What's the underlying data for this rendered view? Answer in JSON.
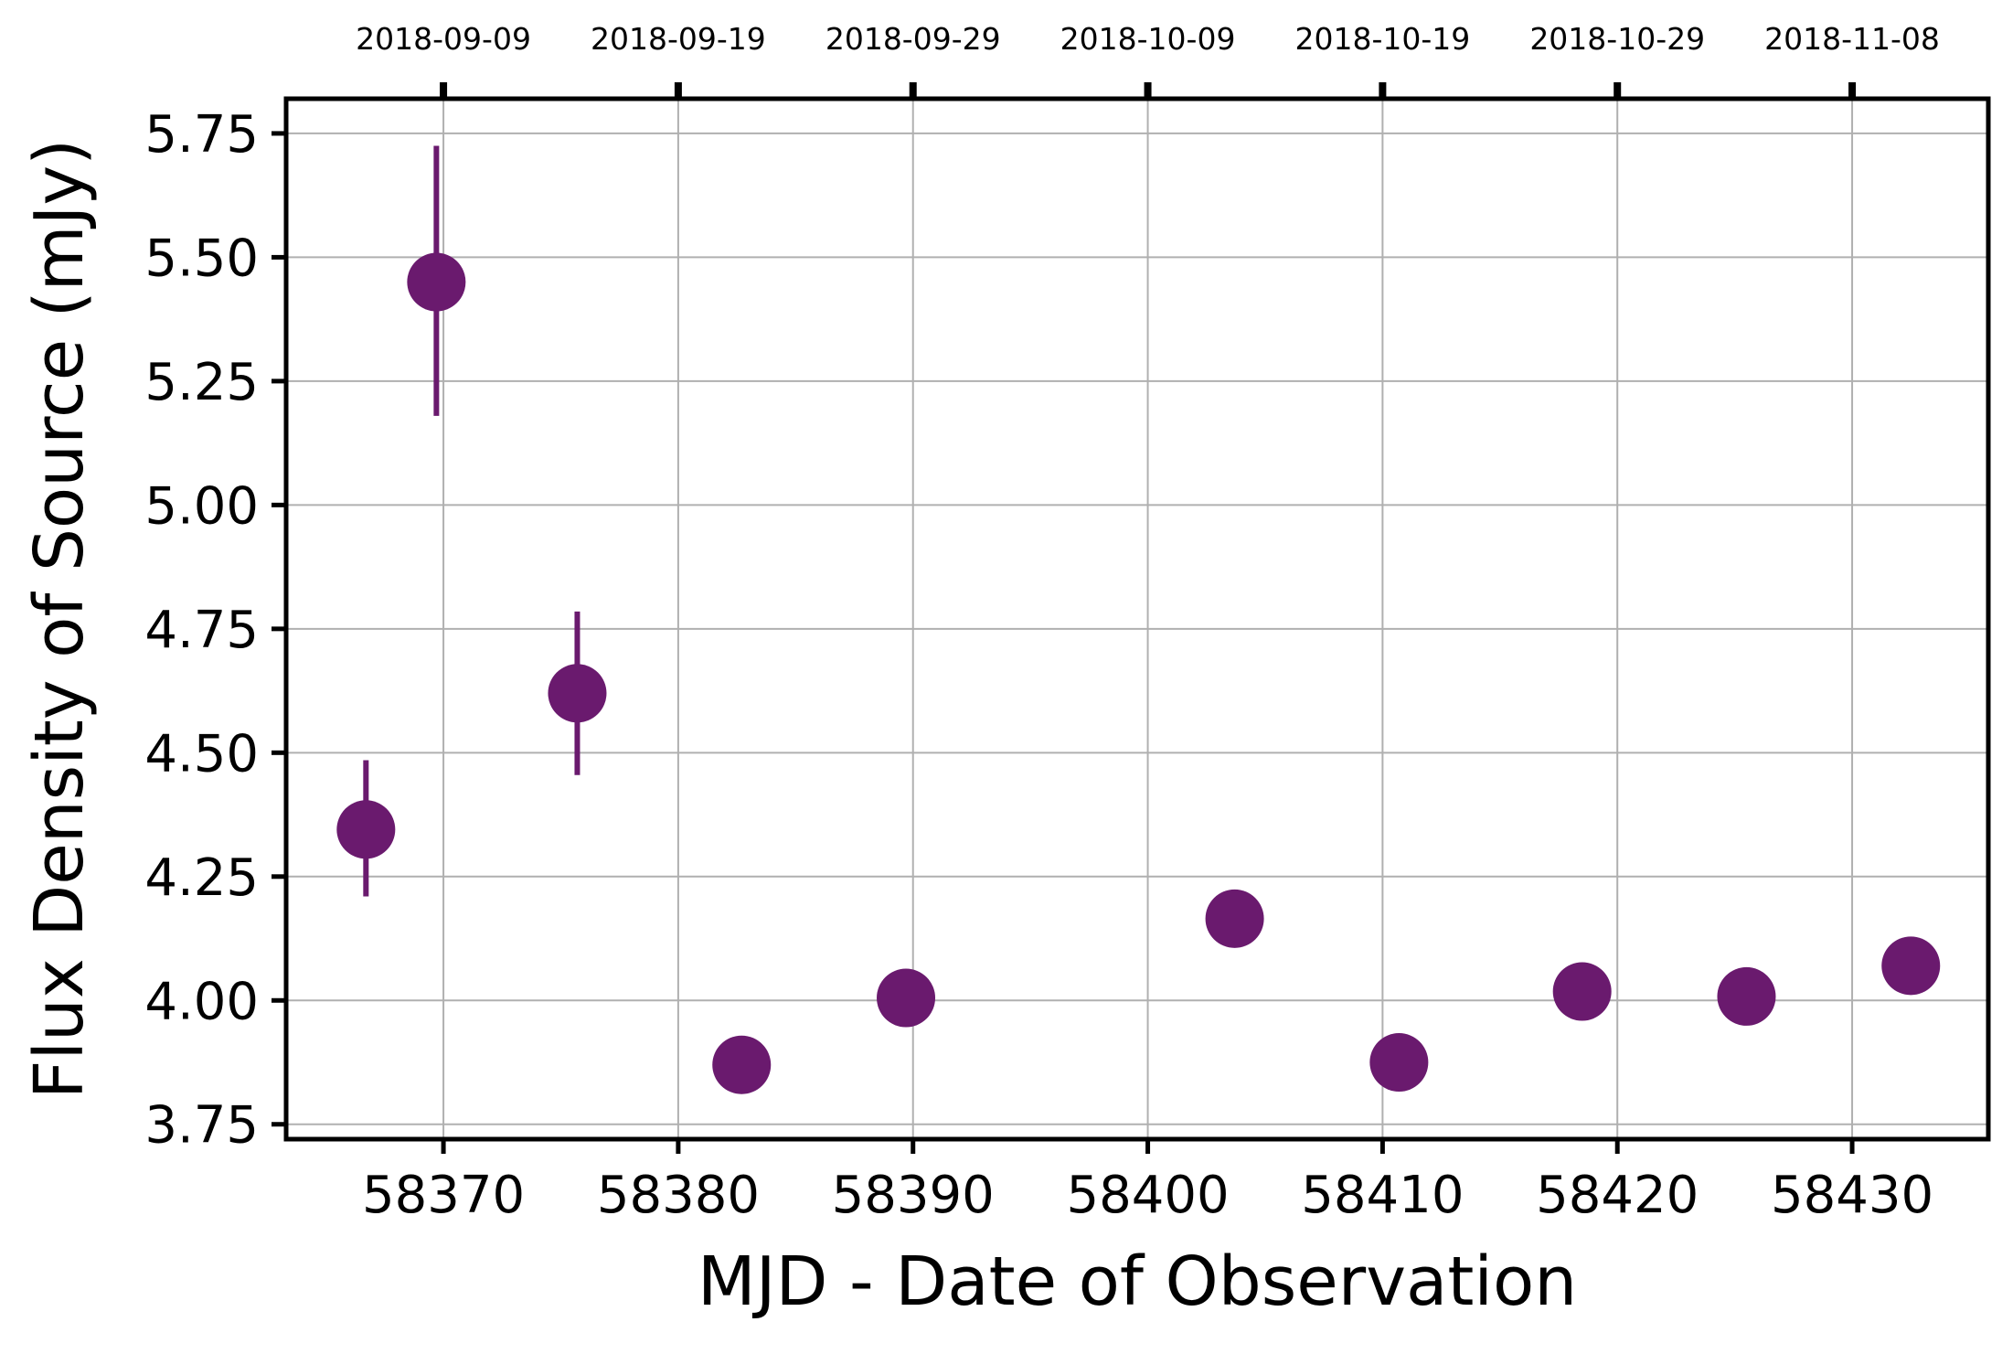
{
  "chart_data": {
    "type": "scatter",
    "title": "",
    "xlabel": "MJD - Date of Observation",
    "ylabel": "Flux Density of Source (mJy)",
    "xlim": [
      58363.3,
      58435.8
    ],
    "ylim": [
      3.72,
      5.82
    ],
    "grid": true,
    "marker_color": "#6a1a6e",
    "x_ticks": [
      58370,
      58380,
      58390,
      58400,
      58410,
      58420,
      58430
    ],
    "y_ticks": [
      3.75,
      4.0,
      4.25,
      4.5,
      4.75,
      5.0,
      5.25,
      5.5,
      5.75
    ],
    "y_tick_labels": [
      "3.75",
      "4.00",
      "4.25",
      "4.50",
      "4.75",
      "5.00",
      "5.25",
      "5.50",
      "5.75"
    ],
    "top_axis": {
      "ticks": [
        58370,
        58380,
        58390,
        58400,
        58410,
        58420,
        58430
      ],
      "labels": [
        "2018-09-09",
        "2018-09-19",
        "2018-09-29",
        "2018-10-09",
        "2018-10-19",
        "2018-10-29",
        "2018-11-08"
      ]
    },
    "points": [
      {
        "x": 58366.7,
        "y": 4.345,
        "err_low": 4.21,
        "err_high": 4.485
      },
      {
        "x": 58369.7,
        "y": 5.45,
        "err_low": 5.18,
        "err_high": 5.725
      },
      {
        "x": 58375.7,
        "y": 4.62,
        "err_low": 4.455,
        "err_high": 4.785
      },
      {
        "x": 58382.7,
        "y": 3.87
      },
      {
        "x": 58389.7,
        "y": 4.005
      },
      {
        "x": 58403.7,
        "y": 4.165
      },
      {
        "x": 58410.7,
        "y": 3.875
      },
      {
        "x": 58418.5,
        "y": 4.018
      },
      {
        "x": 58425.5,
        "y": 4.008
      },
      {
        "x": 58432.5,
        "y": 4.07
      }
    ]
  }
}
